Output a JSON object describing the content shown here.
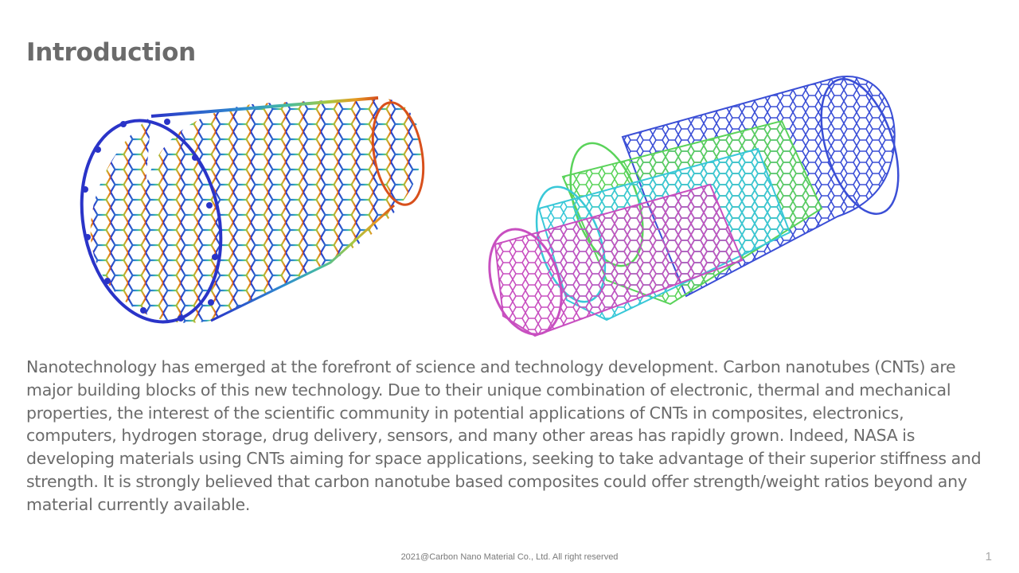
{
  "slide": {
    "title": "Introduction",
    "body": "Nanotechnology has emerged at the forefront of science and technology development. Carbon nanotubes (CNTs) are major building blocks of this new technology. Due to their unique combination of electronic, thermal and mechanical properties, the interest of the scientific community in potential applications of CNTs in composites, electronics, computers, hydrogen storage, drug delivery, sensors, and many other areas has rapidly grown. Indeed, NASA is developing materials using CNTs aiming for space applications, seeking to take advantage of their superior stiffness and strength. It is strongly believed that carbon nanotube based composites could offer strength/weight ratios beyond any material currently available.",
    "footer": "2021@Carbon Nano Material Co., Ltd. All right reserved",
    "page_number": "1"
  },
  "images": {
    "left": {
      "colors": [
        "#2a34c8",
        "#2f7fcf",
        "#39b7b0",
        "#8cc84a",
        "#e0a020",
        "#d8501c"
      ]
    },
    "right": {
      "colors": [
        "#3b4fd6",
        "#5ad35a",
        "#39c8d8",
        "#c84fc0"
      ]
    }
  }
}
